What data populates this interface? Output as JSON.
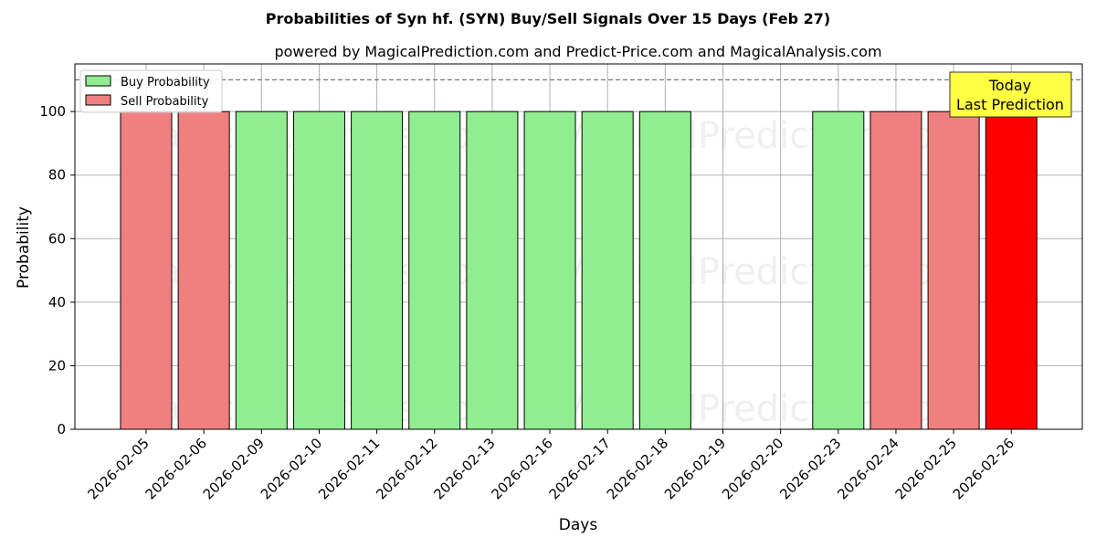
{
  "chart_data": {
    "type": "bar",
    "title": "Probabilities of Syn hf. (SYN) Buy/Sell Signals Over 15 Days (Feb 27)",
    "subtitle": "powered by MagicalPrediction.com and Predict-Price.com and MagicalAnalysis.com",
    "xlabel": "Days",
    "ylabel": "Probability",
    "ylim": [
      0,
      115
    ],
    "yticks": [
      0,
      20,
      40,
      60,
      80,
      100
    ],
    "reference_line": 110,
    "grid": true,
    "legend_position": "top-left",
    "categories": [
      "2026-02-05",
      "2026-02-06",
      "2026-02-09",
      "2026-02-10",
      "2026-02-11",
      "2026-02-12",
      "2026-02-13",
      "2026-02-16",
      "2026-02-17",
      "2026-02-18",
      "2026-02-19",
      "2026-02-20",
      "2026-02-23",
      "2026-02-24",
      "2026-02-25",
      "2026-02-26"
    ],
    "series": [
      {
        "name": "Buy Probability",
        "color": "#90ee90",
        "values": [
          0,
          0,
          100,
          100,
          100,
          100,
          100,
          100,
          100,
          100,
          0,
          0,
          100,
          0,
          0,
          0
        ]
      },
      {
        "name": "Sell Probability",
        "color": "#f08080",
        "values": [
          100,
          100,
          0,
          0,
          0,
          0,
          0,
          0,
          0,
          0,
          0,
          0,
          0,
          100,
          100,
          100
        ]
      }
    ],
    "highlight": {
      "category": "2026-02-26",
      "color": "#ff0000"
    },
    "annotation": {
      "lines": [
        "Today",
        "Last Prediction"
      ],
      "background": "#ffff44"
    },
    "watermarks": [
      "MagicalAnalysis.com",
      "MagicalPrediction.com"
    ]
  }
}
